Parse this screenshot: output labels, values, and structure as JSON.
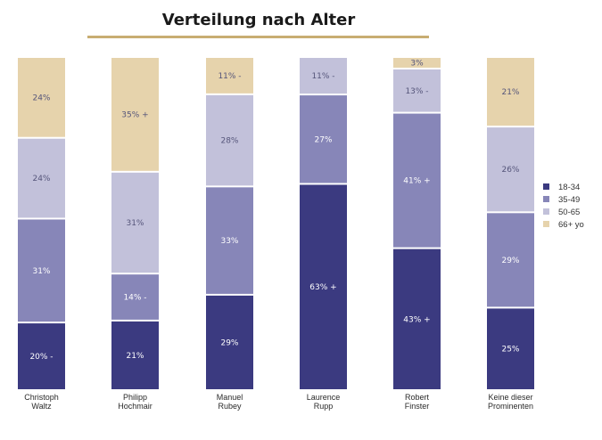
{
  "title": "Verteilung nach Alter",
  "chart_data": {
    "type": "bar",
    "stacked": true,
    "title": "Verteilung nach Alter",
    "categories": [
      [
        "Christoph",
        "Waltz"
      ],
      [
        "Philipp",
        "Hochmair"
      ],
      [
        "Manuel",
        "Rubey"
      ],
      [
        "Laurence",
        "Rupp"
      ],
      [
        "Robert",
        "Finster"
      ],
      [
        "Keine dieser",
        "Prominenten"
      ]
    ],
    "series": [
      {
        "name": "18-34",
        "color": "#3b3a80",
        "values": [
          20,
          21,
          29,
          63,
          43,
          25
        ],
        "labels": [
          "20% -",
          "21%",
          "29%",
          "63% +",
          "43% +",
          "25%"
        ]
      },
      {
        "name": "35-49",
        "color": "#8786b8",
        "values": [
          31,
          14,
          33,
          27,
          41,
          29
        ],
        "labels": [
          "31%",
          "14% -",
          "33%",
          "27%",
          "41% +",
          "29%"
        ]
      },
      {
        "name": "50-65",
        "color": "#c2c1da",
        "values": [
          24,
          31,
          28,
          11,
          13,
          26
        ],
        "labels": [
          "24%",
          "31%",
          "28%",
          "11% -",
          "13% -",
          "26%"
        ]
      },
      {
        "name": "66+ yo",
        "color": "#e6d3ac",
        "values": [
          24,
          35,
          11,
          0,
          3,
          21
        ],
        "labels": [
          "24%",
          "35% +",
          "11% -",
          "",
          "3%",
          "21%"
        ]
      }
    ],
    "legend_position": "right",
    "grid": false
  }
}
